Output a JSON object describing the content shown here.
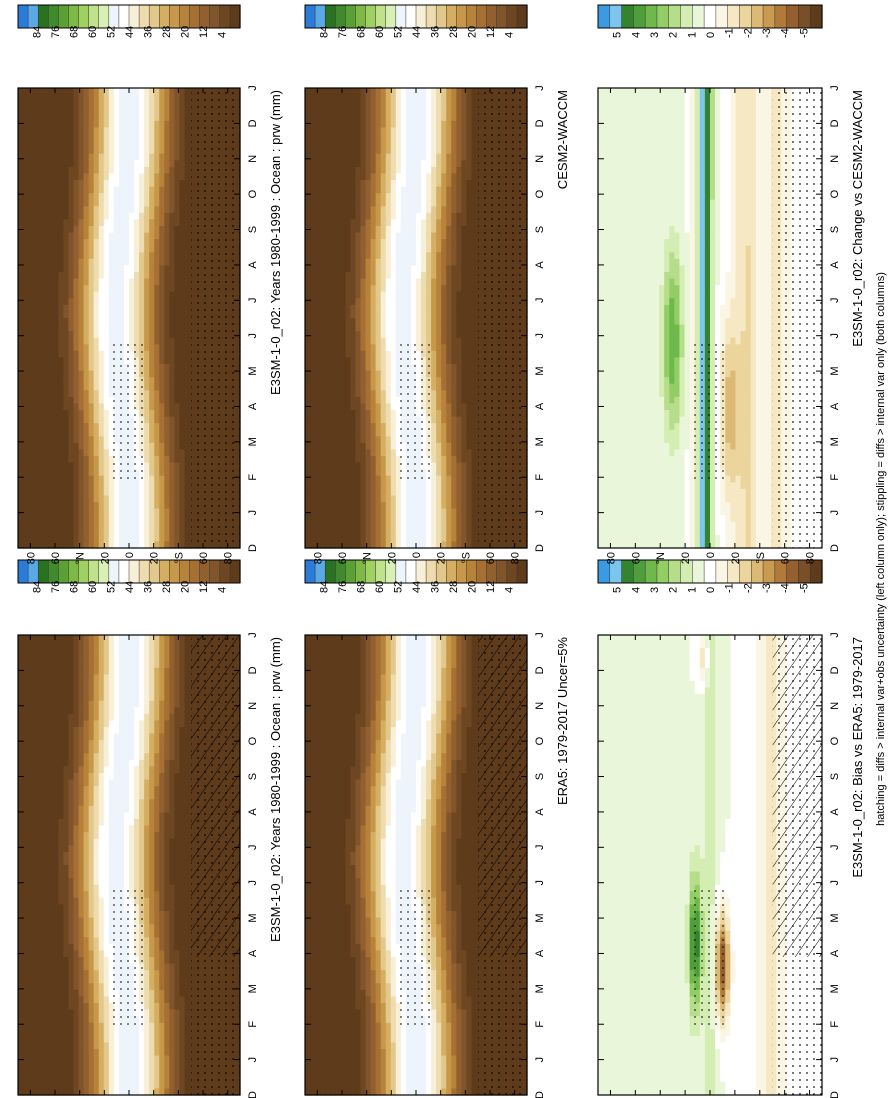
{
  "footnote": "hatching = diffs > internal var+obs uncertainty (left column only); stippling = diffs > internal var only (both columns)",
  "colors": {
    "brown_palette": [
      "#5e3b1a",
      "#6e4722",
      "#80552b",
      "#925f2f",
      "#a66f33",
      "#b7823a",
      "#c79849",
      "#d5ae62",
      "#e3c88b",
      "#efdcae",
      "#f7efd7",
      "#ffffff",
      "#eef4fb",
      "#d8efb5",
      "#c0e28d",
      "#9fd062",
      "#7db945",
      "#5aa035",
      "#3f8a2c",
      "#2b7122",
      "#5aa9e6",
      "#2b7bd8"
    ],
    "diff_palette": [
      "#5e3b1a",
      "#7a4e27",
      "#955f2f",
      "#b27a3a",
      "#c99a4f",
      "#dcb974",
      "#ecd49d",
      "#f6e8c2",
      "#fbf6e4",
      "#ffffff",
      "#eaf6d9",
      "#d3edb2",
      "#b6de8a",
      "#93cd66",
      "#6fb84c",
      "#4f9e3c",
      "#34842e",
      "#7cc5ef",
      "#3a9be0"
    ]
  },
  "chart_data": [
    {
      "type": "heatmap",
      "panel": "top-left",
      "title": "E3SM-1-0_r02: Years 1980-1999 : Ocean : prw (mm)",
      "x_ticks": [
        "J",
        "F",
        "M",
        "A",
        "M",
        "J",
        "J",
        "A",
        "S",
        "O",
        "N",
        "D",
        "J"
      ],
      "x_tick_extra_left": "D",
      "y_ticks": [
        "80",
        "60",
        "°N",
        "20",
        "0",
        "20",
        "°S",
        "60",
        "80"
      ],
      "colorbar_labels": [
        "84",
        "76",
        "68",
        "60",
        "52",
        "44",
        "36",
        "28",
        "20",
        "12",
        "4"
      ],
      "overlay": "hatching+stippling",
      "field": "climatology"
    },
    {
      "type": "heatmap",
      "panel": "top-right",
      "title": "E3SM-1-0_r02: Years 1980-1999 : Ocean : prw (mm)",
      "x_ticks": [
        "J",
        "F",
        "M",
        "A",
        "M",
        "J",
        "J",
        "A",
        "S",
        "O",
        "N",
        "D",
        "J"
      ],
      "x_tick_extra_left": "D",
      "y_ticks": [
        "80",
        "60",
        "°N",
        "20",
        "0",
        "20",
        "°S",
        "60",
        "80"
      ],
      "colorbar_labels": [
        "84",
        "76",
        "68",
        "60",
        "52",
        "44",
        "36",
        "28",
        "20",
        "12",
        "4"
      ],
      "overlay": "stippling",
      "field": "climatology"
    },
    {
      "type": "heatmap",
      "panel": "middle-left",
      "title": "ERA5: 1979-2017 Uncer=5%",
      "x_ticks": [
        "J",
        "F",
        "M",
        "A",
        "M",
        "J",
        "J",
        "A",
        "S",
        "O",
        "N",
        "D",
        "J"
      ],
      "x_tick_extra_left": "D",
      "y_ticks": [
        "80",
        "60",
        "°N",
        "20",
        "0",
        "20",
        "°S",
        "60",
        "80"
      ],
      "colorbar_labels": [
        "84",
        "76",
        "68",
        "60",
        "52",
        "44",
        "36",
        "28",
        "20",
        "12",
        "4"
      ],
      "overlay": "hatching+stippling",
      "field": "climatology"
    },
    {
      "type": "heatmap",
      "panel": "middle-right",
      "title": "CESM2-WACCM",
      "x_ticks": [
        "J",
        "F",
        "M",
        "A",
        "M",
        "J",
        "J",
        "A",
        "S",
        "O",
        "N",
        "D",
        "J"
      ],
      "x_tick_extra_left": "D",
      "y_ticks": [
        "80",
        "60",
        "°N",
        "20",
        "0",
        "20",
        "°S",
        "60",
        "80"
      ],
      "colorbar_labels": [
        "84",
        "76",
        "68",
        "60",
        "52",
        "44",
        "36",
        "28",
        "20",
        "12",
        "4"
      ],
      "overlay": "stippling",
      "field": "climatology"
    },
    {
      "type": "heatmap",
      "panel": "bottom-left",
      "title": "E3SM-1-0_r02: Bias vs ERA5: 1979-2017",
      "x_ticks": [
        "J",
        "F",
        "M",
        "A",
        "M",
        "J",
        "J",
        "A",
        "S",
        "O",
        "N",
        "D",
        "J"
      ],
      "x_tick_extra_left": "D",
      "y_ticks": [
        "80",
        "60",
        "°N",
        "20",
        "0",
        "20",
        "°S",
        "60",
        "80"
      ],
      "colorbar_labels": [
        "5",
        "4",
        "3",
        "2",
        "1",
        "0",
        "-1",
        "-2",
        "-3",
        "-4",
        "-5"
      ],
      "overlay": "hatching+stippling",
      "field": "bias"
    },
    {
      "type": "heatmap",
      "panel": "bottom-right",
      "title": "E3SM-1-0_r02: Change vs CESM2-WACCM",
      "x_ticks": [
        "J",
        "F",
        "M",
        "A",
        "M",
        "J",
        "J",
        "A",
        "S",
        "O",
        "N",
        "D",
        "J"
      ],
      "x_tick_extra_left": "D",
      "y_ticks": [
        "80",
        "60",
        "°N",
        "20",
        "0",
        "20",
        "°S",
        "60",
        "80"
      ],
      "colorbar_labels": [
        "5",
        "4",
        "3",
        "2",
        "1",
        "0",
        "-1",
        "-2",
        "-3",
        "-4",
        "-5"
      ],
      "overlay": "stippling",
      "field": "change"
    }
  ]
}
